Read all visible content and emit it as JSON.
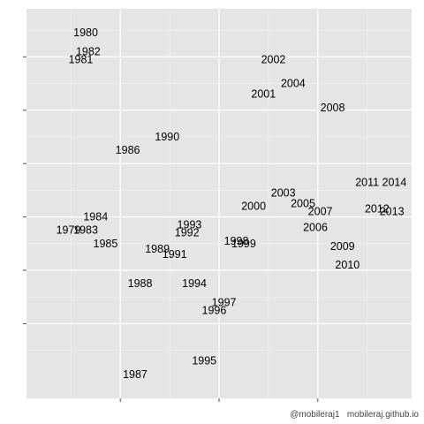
{
  "chart_data": {
    "type": "scatter",
    "title": "",
    "xlabel": "",
    "ylabel": "",
    "xlim": [
      -3.9,
      3.9
    ],
    "ylim": [
      -3.4,
      3.9
    ],
    "x_ticks": [
      -2,
      0,
      2
    ],
    "y_ticks": [
      -2,
      -1,
      0,
      1,
      2,
      3
    ],
    "grid": true,
    "tick_labels_visible": false,
    "points": [
      {
        "label": "1979",
        "x": -3.05,
        "y": -0.25
      },
      {
        "label": "1980",
        "x": -2.7,
        "y": 3.45
      },
      {
        "label": "1981",
        "x": -2.8,
        "y": 2.95
      },
      {
        "label": "1982",
        "x": -2.65,
        "y": 3.1
      },
      {
        "label": "1983",
        "x": -2.7,
        "y": -0.25
      },
      {
        "label": "1984",
        "x": -2.5,
        "y": -0.0
      },
      {
        "label": "1985",
        "x": -2.3,
        "y": -0.5
      },
      {
        "label": "1986",
        "x": -1.85,
        "y": 1.25
      },
      {
        "label": "1987",
        "x": -1.7,
        "y": -2.95
      },
      {
        "label": "1988",
        "x": -1.6,
        "y": -1.25
      },
      {
        "label": "1989",
        "x": -1.25,
        "y": -0.6
      },
      {
        "label": "1990",
        "x": -1.05,
        "y": 1.5
      },
      {
        "label": "1991",
        "x": -0.9,
        "y": -0.7
      },
      {
        "label": "1992",
        "x": -0.65,
        "y": -0.3
      },
      {
        "label": "1993",
        "x": -0.6,
        "y": -0.15
      },
      {
        "label": "1994",
        "x": -0.5,
        "y": -1.25
      },
      {
        "label": "1995",
        "x": -0.3,
        "y": -2.7
      },
      {
        "label": "1996",
        "x": -0.1,
        "y": -1.75
      },
      {
        "label": "1997",
        "x": 0.1,
        "y": -1.6
      },
      {
        "label": "1998",
        "x": 0.35,
        "y": -0.45
      },
      {
        "label": "1999",
        "x": 0.5,
        "y": -0.5
      },
      {
        "label": "2000",
        "x": 0.7,
        "y": 0.2
      },
      {
        "label": "2001",
        "x": 0.9,
        "y": 2.3
      },
      {
        "label": "2002",
        "x": 1.1,
        "y": 2.95
      },
      {
        "label": "2003",
        "x": 1.3,
        "y": 0.45
      },
      {
        "label": "2004",
        "x": 1.5,
        "y": 2.5
      },
      {
        "label": "2005",
        "x": 1.7,
        "y": 0.25
      },
      {
        "label": "2006",
        "x": 1.95,
        "y": -0.2
      },
      {
        "label": "2007",
        "x": 2.05,
        "y": 0.1
      },
      {
        "label": "2008",
        "x": 2.3,
        "y": 2.05
      },
      {
        "label": "2009",
        "x": 2.5,
        "y": -0.55
      },
      {
        "label": "2010",
        "x": 2.6,
        "y": -0.9
      },
      {
        "label": "2011",
        "x": 3.0,
        "y": 0.65
      },
      {
        "label": "2012",
        "x": 3.2,
        "y": 0.15
      },
      {
        "label": "2013",
        "x": 3.5,
        "y": 0.1
      },
      {
        "label": "2014",
        "x": 3.55,
        "y": 0.65
      }
    ],
    "colors": {
      "panel_background": "#e5e5e5",
      "grid_major": "#ffffff",
      "grid_minor": "#f2f2f2",
      "text": "#000000",
      "axis_tick": "#4d4d4d"
    }
  },
  "caption": "@mobileraj1   mobileraj.github.io"
}
